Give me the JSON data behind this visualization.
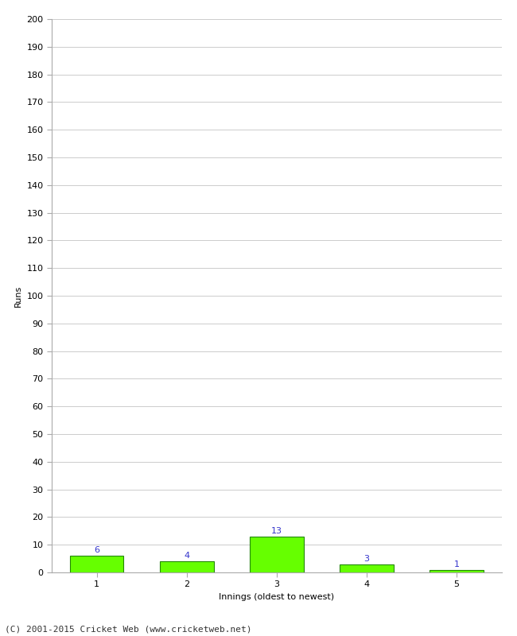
{
  "xlabel": "Innings (oldest to newest)",
  "ylabel": "Runs",
  "categories": [
    1,
    2,
    3,
    4,
    5
  ],
  "values": [
    6,
    4,
    13,
    3,
    1
  ],
  "bar_color": "#66ff00",
  "bar_edge_color": "#228800",
  "label_color": "#3333cc",
  "ylim": [
    0,
    200
  ],
  "yticks": [
    0,
    10,
    20,
    30,
    40,
    50,
    60,
    70,
    80,
    90,
    100,
    110,
    120,
    130,
    140,
    150,
    160,
    170,
    180,
    190,
    200
  ],
  "footer": "(C) 2001-2015 Cricket Web (www.cricketweb.net)",
  "background_color": "#ffffff",
  "grid_color": "#cccccc",
  "label_fontsize": 8,
  "footer_fontsize": 8,
  "axis_label_fontsize": 8,
  "tick_fontsize": 8,
  "bar_width": 0.6
}
